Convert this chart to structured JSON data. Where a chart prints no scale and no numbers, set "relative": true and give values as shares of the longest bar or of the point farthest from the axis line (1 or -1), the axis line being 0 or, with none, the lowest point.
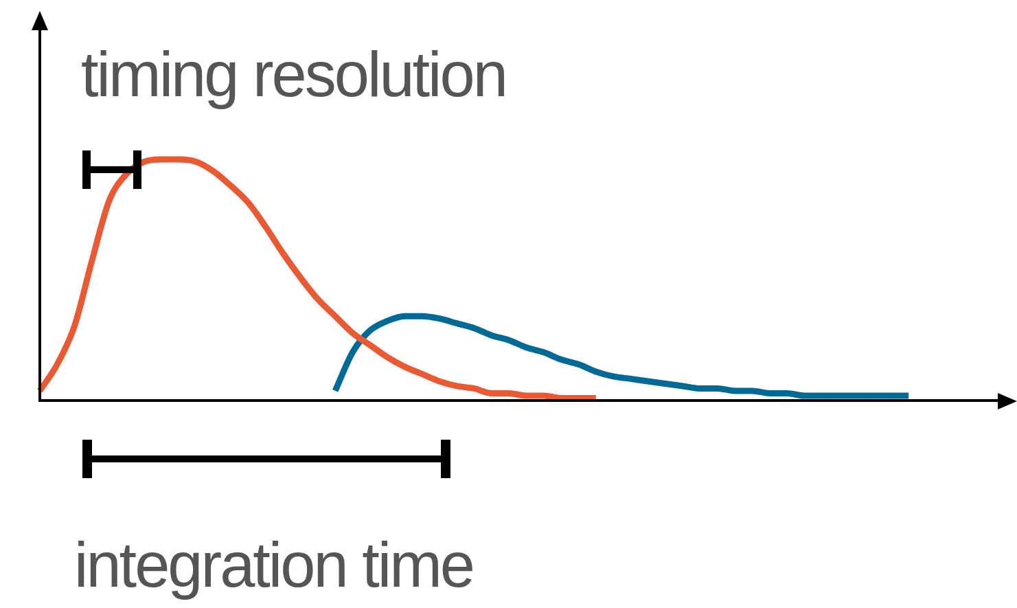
{
  "chart_data": {
    "type": "line",
    "relative": true,
    "legend": false,
    "tick_labels": false,
    "marker": "none",
    "line_style": "solid",
    "categories": [
      null,
      null,
      null,
      null,
      null,
      null,
      null,
      null,
      null,
      null,
      null,
      null,
      null,
      null,
      null,
      null,
      null,
      null,
      null,
      null,
      null,
      null,
      null,
      null,
      null,
      null,
      null,
      null,
      null,
      null,
      null,
      null,
      null,
      null,
      null,
      null,
      null,
      null,
      null,
      null,
      null,
      null,
      null,
      null,
      null,
      null,
      null,
      null,
      null,
      null,
      null,
      null,
      null,
      null,
      null,
      null,
      null
    ],
    "series": [
      {
        "color": "#e85a34",
        "values": [
          0.04,
          0.15,
          0.31,
          0.58,
          0.83,
          0.94,
          0.99,
          1,
          1,
          0.99,
          0.95,
          0.89,
          0.82,
          0.72,
          0.61,
          0.51,
          0.42,
          0.35,
          0.28,
          0.23,
          0.18,
          0.14,
          0.11,
          0.08,
          0.06,
          0.05,
          0.03,
          0.03,
          0.02,
          0.02,
          0.01,
          0.01,
          0.01,
          null,
          null,
          null,
          null,
          null,
          null,
          null,
          null,
          null,
          null,
          null,
          null,
          null,
          null,
          null,
          null,
          null,
          null,
          null,
          null,
          null,
          null,
          null,
          null
        ]
      },
      {
        "color": "#006994",
        "values": [
          null,
          null,
          null,
          null,
          null,
          null,
          null,
          null,
          null,
          null,
          null,
          null,
          null,
          null,
          null,
          null,
          null,
          0.04,
          0.2,
          0.29,
          0.33,
          0.35,
          0.35,
          0.34,
          0.32,
          0.3,
          0.27,
          0.25,
          0.22,
          0.2,
          0.17,
          0.15,
          0.12,
          0.1,
          0.09,
          0.08,
          0.07,
          0.06,
          0.05,
          0.05,
          0.04,
          0.04,
          0.03,
          0.03,
          0.02,
          0.02,
          0.02,
          0.02,
          0.02,
          0.02,
          0.02,
          null,
          null,
          null,
          null,
          null,
          null
        ]
      }
    ],
    "annotations": [
      "timing resolution",
      "integration time"
    ]
  }
}
